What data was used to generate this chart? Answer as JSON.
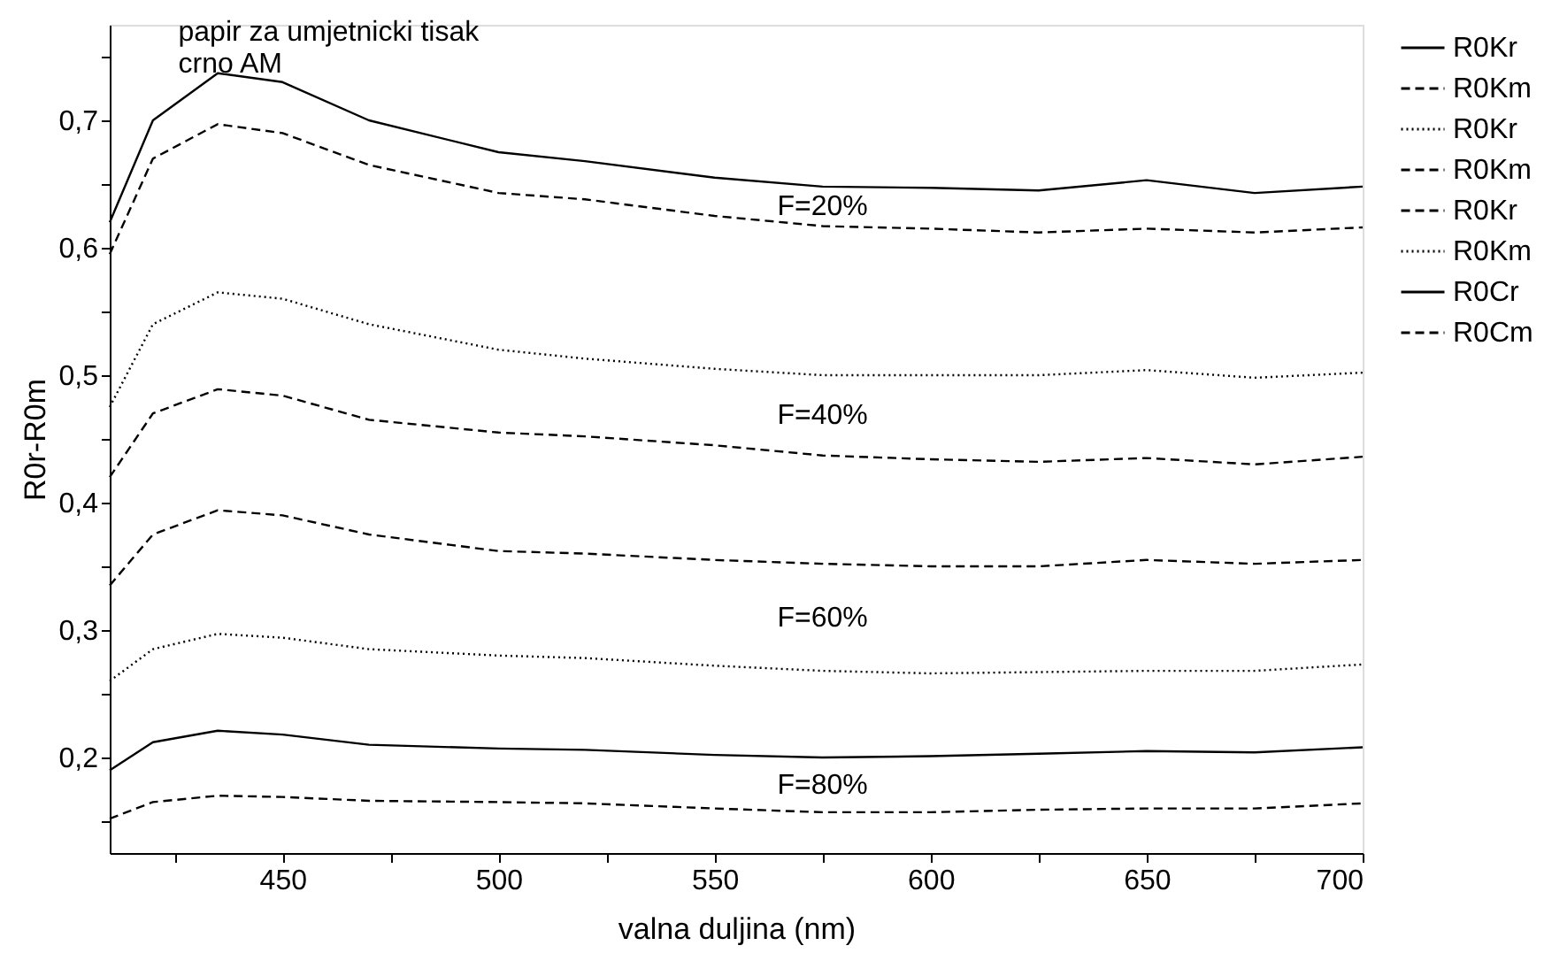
{
  "chart_data": {
    "type": "line",
    "title": [
      "papir za umjetnicki tisak",
      "crno AM"
    ],
    "xlabel": "valna duljina (nm)",
    "ylabel": "R0r-R0m",
    "x": [
      410,
      420,
      435,
      450,
      470,
      500,
      520,
      550,
      575,
      600,
      625,
      650,
      675,
      700
    ],
    "xlim": [
      410,
      700
    ],
    "xticks": [
      {
        "value": 425,
        "label": null
      },
      450,
      {
        "value": 475,
        "label": null
      },
      500,
      {
        "value": 525,
        "label": null
      },
      550,
      {
        "value": 575,
        "label": null
      },
      600,
      {
        "value": 625,
        "label": null
      },
      650,
      {
        "value": 675,
        "label": null
      },
      700
    ],
    "ylim": [
      0.125,
      0.775
    ],
    "yticks": [
      {
        "value": 0.15,
        "label": null
      },
      {
        "value": 0.2,
        "label": "0,2"
      },
      {
        "value": 0.25,
        "label": null
      },
      {
        "value": 0.3,
        "label": "0,3"
      },
      {
        "value": 0.35,
        "label": null
      },
      {
        "value": 0.4,
        "label": "0,4"
      },
      {
        "value": 0.45,
        "label": null
      },
      {
        "value": 0.5,
        "label": "0,5"
      },
      {
        "value": 0.55,
        "label": null
      },
      {
        "value": 0.6,
        "label": "0,6"
      },
      {
        "value": 0.65,
        "label": null
      },
      {
        "value": 0.7,
        "label": "0,7"
      },
      {
        "value": 0.75,
        "label": null
      }
    ],
    "grid": false,
    "legend": "right",
    "marker": "none",
    "series": [
      {
        "name": "R0Kr",
        "color": "#000000",
        "line_style": "solid",
        "values": [
          0.62,
          0.7,
          0.737,
          0.73,
          0.7,
          0.675,
          0.668,
          0.655,
          0.648,
          0.647,
          0.645,
          0.653,
          0.643,
          0.648
        ]
      },
      {
        "name": "R0Km",
        "color": "#000000",
        "line_style": "dashed",
        "values": [
          0.595,
          0.67,
          0.697,
          0.69,
          0.665,
          0.643,
          0.638,
          0.625,
          0.617,
          0.615,
          0.612,
          0.615,
          0.612,
          0.616
        ]
      },
      {
        "name": "R0Kr",
        "color": "#000000",
        "line_style": "dotted",
        "values": [
          0.475,
          0.54,
          0.565,
          0.56,
          0.54,
          0.52,
          0.513,
          0.505,
          0.5,
          0.5,
          0.5,
          0.504,
          0.498,
          0.502
        ]
      },
      {
        "name": "R0Km",
        "color": "#000000",
        "line_style": "dashed",
        "values": [
          0.42,
          0.47,
          0.489,
          0.484,
          0.465,
          0.455,
          0.452,
          0.445,
          0.437,
          0.434,
          0.432,
          0.435,
          0.43,
          0.436
        ]
      },
      {
        "name": "R0Kr",
        "color": "#000000",
        "line_style": "dashed",
        "values": [
          0.335,
          0.375,
          0.394,
          0.39,
          0.375,
          0.362,
          0.36,
          0.355,
          0.352,
          0.35,
          0.35,
          0.355,
          0.352,
          0.355
        ]
      },
      {
        "name": "R0Km",
        "color": "#000000",
        "line_style": "dotted",
        "values": [
          0.26,
          0.285,
          0.297,
          0.294,
          0.285,
          0.28,
          0.278,
          0.272,
          0.268,
          0.266,
          0.267,
          0.268,
          0.268,
          0.273
        ]
      },
      {
        "name": "R0Cr",
        "color": "#000000",
        "line_style": "solid",
        "values": [
          0.19,
          0.212,
          0.221,
          0.218,
          0.21,
          0.207,
          0.206,
          0.202,
          0.2,
          0.201,
          0.203,
          0.205,
          0.204,
          0.208
        ]
      },
      {
        "name": "R0Cm",
        "color": "#000000",
        "line_style": "dashed",
        "values": [
          0.152,
          0.165,
          0.17,
          0.169,
          0.166,
          0.165,
          0.164,
          0.16,
          0.157,
          0.157,
          0.159,
          0.16,
          0.16,
          0.164
        ]
      }
    ],
    "annotations": [
      "F=20%",
      "F=40%",
      "F=60%",
      "F=80%"
    ]
  }
}
